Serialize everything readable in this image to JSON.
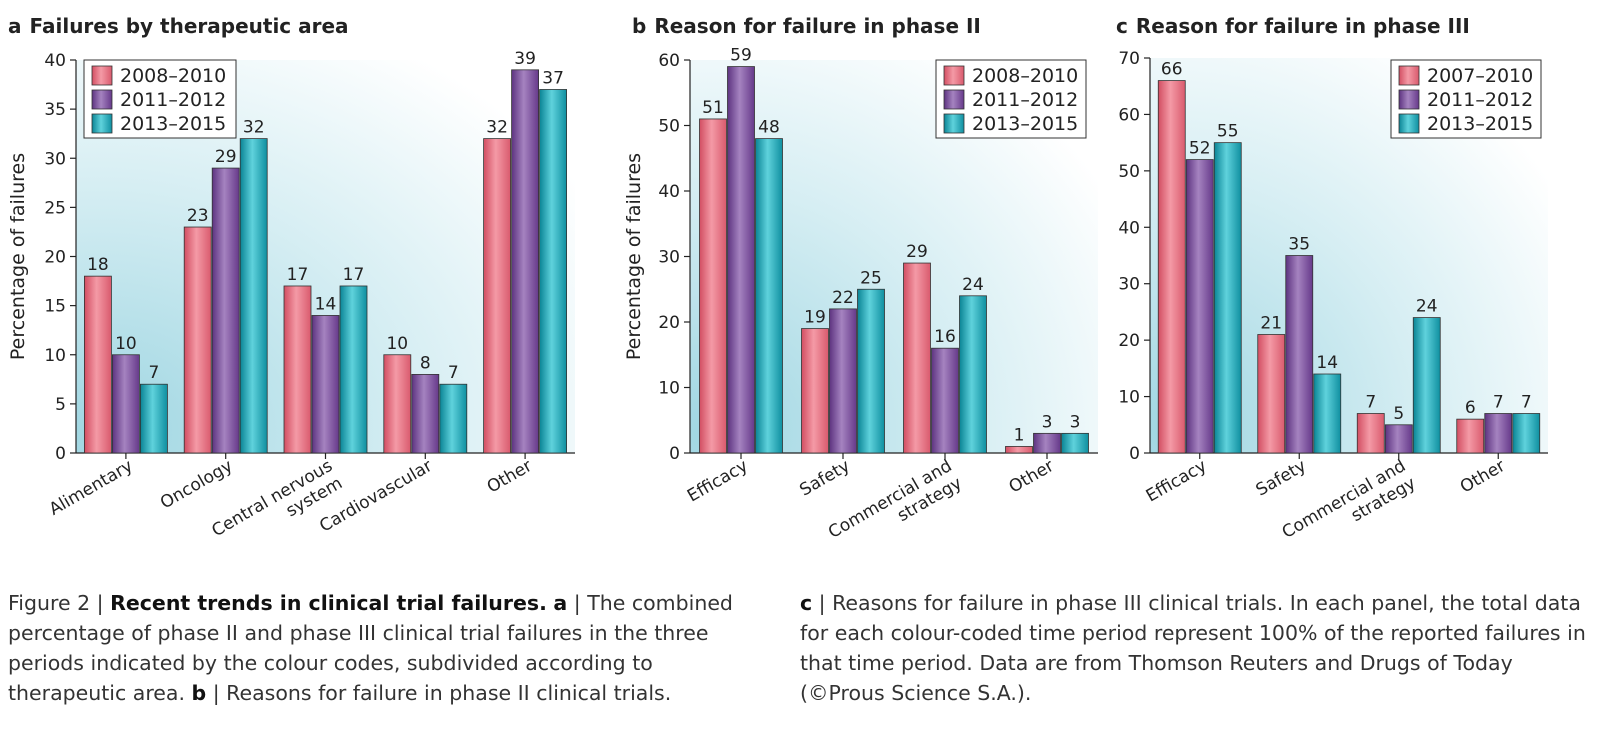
{
  "chart_data": [
    {
      "id": "a",
      "type": "bar",
      "letter": "a",
      "title": "Failures by therapeutic area",
      "ylabel": "Percentage of failures",
      "ylim": [
        0,
        40
      ],
      "yticks": [
        0,
        5,
        10,
        15,
        20,
        25,
        30,
        35,
        40
      ],
      "categories": [
        [
          "Alimentary"
        ],
        [
          "Oncology"
        ],
        [
          "Central nervous",
          "system"
        ],
        [
          "Cardiovascular"
        ],
        [
          "Other"
        ]
      ],
      "legend_position": "top-left",
      "series": [
        {
          "name": "2008–2010",
          "color": "#e8707f",
          "values": [
            18,
            23,
            17,
            10,
            32
          ]
        },
        {
          "name": "2011–2012",
          "color": "#7e4f9c",
          "values": [
            10,
            29,
            14,
            8,
            39
          ]
        },
        {
          "name": "2013–2015",
          "color": "#1aa8b8",
          "values": [
            7,
            32,
            17,
            7,
            37
          ]
        }
      ]
    },
    {
      "id": "b",
      "type": "bar",
      "letter": "b",
      "title": "Reason for failure in phase II",
      "ylabel": "Percentage of failures",
      "ylim": [
        0,
        60
      ],
      "yticks": [
        0,
        10,
        20,
        30,
        40,
        50,
        60
      ],
      "categories": [
        [
          "Efficacy"
        ],
        [
          "Safety"
        ],
        [
          "Commercial and",
          "strategy"
        ],
        [
          "Other"
        ]
      ],
      "legend_position": "top-right",
      "series": [
        {
          "name": "2008–2010",
          "color": "#e8707f",
          "values": [
            51,
            19,
            29,
            1
          ]
        },
        {
          "name": "2011–2012",
          "color": "#7e4f9c",
          "values": [
            59,
            22,
            16,
            3
          ]
        },
        {
          "name": "2013–2015",
          "color": "#1aa8b8",
          "values": [
            48,
            25,
            24,
            3
          ]
        }
      ]
    },
    {
      "id": "c",
      "type": "bar",
      "letter": "c",
      "title": "Reason for failure in phase III",
      "ylabel": "",
      "ylim": [
        0,
        70
      ],
      "yticks": [
        0,
        10,
        20,
        30,
        40,
        50,
        60,
        70
      ],
      "categories": [
        [
          "Efficacy"
        ],
        [
          "Safety"
        ],
        [
          "Commercial and",
          "strategy"
        ],
        [
          "Other"
        ]
      ],
      "legend_position": "top-right",
      "series": [
        {
          "name": "2007–2010",
          "color": "#e8707f",
          "values": [
            66,
            21,
            7,
            6
          ]
        },
        {
          "name": "2011–2012",
          "color": "#7e4f9c",
          "values": [
            52,
            35,
            5,
            7
          ]
        },
        {
          "name": "2013–2015",
          "color": "#1aa8b8",
          "values": [
            55,
            14,
            24,
            7
          ]
        }
      ]
    }
  ],
  "caption": {
    "figure_label": "Figure 2 | ",
    "bold_title": "Recent trends in clinical trial failures.",
    "a_letter": "a",
    "a_text": " | The combined percentage of phase II and phase III clinical trial failures in the three periods indicated by the colour codes, subdivided according to therapeutic area. ",
    "b_letter": "b",
    "b_text": " | Reasons for failure in phase II clinical trials.",
    "c_letter": "c",
    "c_text": " | Reasons for failure in phase III clinical trials. In each panel, the total data for each colour-coded time period represent 100% of the reported failures in that time period. Data are from Thomson Reuters and Drugs of Today (©Prous Science S.A.)."
  }
}
